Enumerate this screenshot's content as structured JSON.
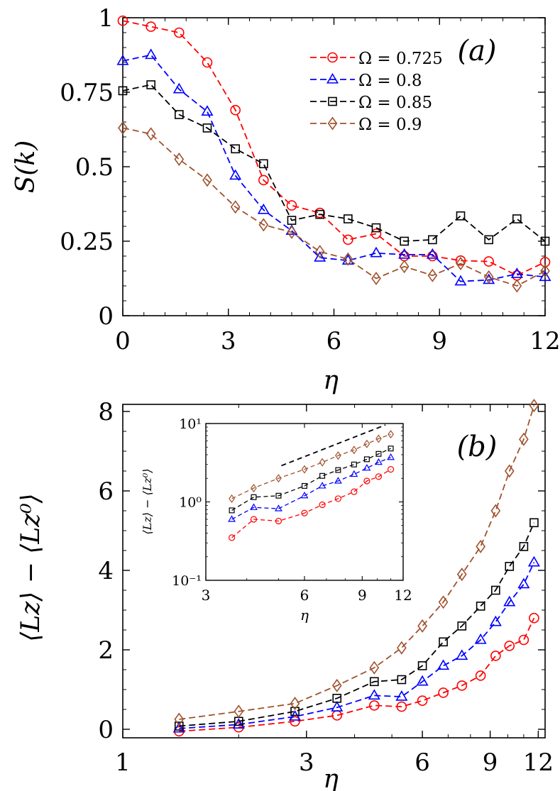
{
  "chart_data": [
    {
      "type": "line",
      "panel_label": "(a)",
      "xlabel": "η",
      "ylabel": "S(k)",
      "xlim": [
        0,
        12
      ],
      "ylim": [
        0,
        1
      ],
      "xticks": [
        "0",
        "3",
        "6",
        "9",
        "12"
      ],
      "yticks": [
        "0",
        "0.25",
        "0.5",
        "0.75",
        "1"
      ],
      "legend_position": "top-right",
      "series": [
        {
          "name": "Ω = 0.725",
          "color": "#ff0000",
          "marker": "circle",
          "x": [
            0,
            0.8,
            1.6,
            2.4,
            3.2,
            4.0,
            4.8,
            5.6,
            6.4,
            7.2,
            8.0,
            8.8,
            9.6,
            10.4,
            11.2,
            12.0
          ],
          "y": [
            0.99,
            0.97,
            0.95,
            0.85,
            0.69,
            0.455,
            0.37,
            0.345,
            0.255,
            0.275,
            0.2,
            0.2,
            0.185,
            0.182,
            0.135,
            0.18
          ]
        },
        {
          "name": "Ω = 0.8",
          "color": "#0000ff",
          "marker": "triangle",
          "x": [
            0,
            0.8,
            1.6,
            2.4,
            3.2,
            4.0,
            4.8,
            5.6,
            6.4,
            7.2,
            8.0,
            8.8,
            9.6,
            10.4,
            11.2,
            12.0
          ],
          "y": [
            0.855,
            0.875,
            0.76,
            0.685,
            0.47,
            0.355,
            0.285,
            0.195,
            0.185,
            0.21,
            0.205,
            0.205,
            0.115,
            0.12,
            0.14,
            0.13
          ]
        },
        {
          "name": "Ω = 0.85",
          "color": "#000000",
          "marker": "square",
          "x": [
            0,
            0.8,
            1.6,
            2.4,
            3.2,
            4.0,
            4.8,
            5.6,
            6.4,
            7.2,
            8.0,
            8.8,
            9.6,
            10.4,
            11.2,
            12.0
          ],
          "y": [
            0.755,
            0.775,
            0.675,
            0.63,
            0.56,
            0.51,
            0.32,
            0.34,
            0.325,
            0.295,
            0.25,
            0.255,
            0.335,
            0.255,
            0.325,
            0.25
          ]
        },
        {
          "name": "Ω = 0.9",
          "color": "#a0522d",
          "marker": "diamond",
          "x": [
            0,
            0.8,
            1.6,
            2.4,
            3.2,
            4.0,
            4.8,
            5.6,
            6.4,
            7.2,
            8.0,
            8.8,
            9.6,
            10.4,
            11.2,
            12.0
          ],
          "y": [
            0.63,
            0.61,
            0.525,
            0.455,
            0.365,
            0.305,
            0.28,
            0.215,
            0.19,
            0.125,
            0.165,
            0.135,
            0.175,
            0.13,
            0.1,
            0.15
          ]
        }
      ]
    },
    {
      "type": "line",
      "panel_label": "(b)",
      "xlabel": "η",
      "ylabel": "⟨Lz⟩ − ⟨Lz⁰⟩",
      "xscale": "log",
      "xlim": [
        1,
        12.5
      ],
      "ylim": [
        0,
        8
      ],
      "xticks": [
        "1",
        "3",
        "6",
        "9",
        "12"
      ],
      "yticks": [
        "0",
        "2",
        "4",
        "6",
        "8"
      ],
      "series": [
        {
          "name": "Ω = 0.725",
          "color": "#ff0000",
          "marker": "circle",
          "x": [
            1.4,
            2.0,
            2.8,
            3.6,
            4.5,
            5.3,
            6.0,
            6.8,
            7.6,
            8.5,
            9.3,
            10.1,
            11.0,
            11.7
          ],
          "y": [
            -0.05,
            0.05,
            0.2,
            0.35,
            0.6,
            0.57,
            0.72,
            0.92,
            1.1,
            1.35,
            1.85,
            2.1,
            2.25,
            2.8
          ]
        },
        {
          "name": "Ω = 0.8",
          "color": "#0000ff",
          "marker": "triangle",
          "x": [
            1.4,
            2.0,
            2.8,
            3.6,
            4.5,
            5.3,
            6.0,
            6.8,
            7.6,
            8.5,
            9.3,
            10.1,
            11.0,
            11.7
          ],
          "y": [
            0.02,
            0.12,
            0.32,
            0.55,
            0.85,
            0.82,
            1.2,
            1.6,
            1.85,
            2.25,
            2.7,
            3.2,
            3.65,
            4.2
          ]
        },
        {
          "name": "Ω = 0.85",
          "color": "#000000",
          "marker": "square",
          "x": [
            1.4,
            2.0,
            2.8,
            3.6,
            4.5,
            5.3,
            6.0,
            6.8,
            7.6,
            8.5,
            9.3,
            10.1,
            11.0,
            11.7
          ],
          "y": [
            0.08,
            0.2,
            0.45,
            0.78,
            1.2,
            1.25,
            1.6,
            2.2,
            2.6,
            3.1,
            3.5,
            4.1,
            4.6,
            5.2
          ]
        },
        {
          "name": "Ω = 0.9",
          "color": "#a0522d",
          "marker": "diamond",
          "x": [
            1.4,
            2.0,
            2.8,
            3.6,
            4.5,
            5.3,
            6.0,
            6.8,
            7.6,
            8.5,
            9.3,
            10.1,
            11.0,
            11.7
          ],
          "y": [
            0.25,
            0.45,
            0.65,
            1.1,
            1.55,
            2.05,
            2.6,
            3.2,
            3.9,
            4.6,
            5.5,
            6.5,
            7.3,
            8.15
          ]
        }
      ],
      "inset": {
        "xscale": "log",
        "yscale": "log",
        "xlabel": "η",
        "ylabel": "⟨Lz⟩ − ⟨Lz⁰⟩",
        "xlim": [
          3,
          12
        ],
        "ylim": [
          0.1,
          10
        ],
        "xticks": [
          "3",
          "6",
          "9",
          "12"
        ],
        "yticks": [
          "10⁻¹",
          "10⁰",
          "10¹"
        ],
        "guide_line": {
          "x": [
            5.1,
            10.6
          ],
          "y": [
            2.9,
            9.6
          ]
        },
        "series": [
          {
            "name": "Ω = 0.725",
            "color": "#ff0000",
            "marker": "circle",
            "x": [
              3.6,
              4.2,
              5.0,
              6.0,
              6.8,
              7.6,
              8.5,
              9.3,
              10.1,
              11.0
            ],
            "y": [
              0.35,
              0.6,
              0.57,
              0.72,
              0.92,
              1.1,
              1.35,
              1.85,
              2.1,
              2.6
            ]
          },
          {
            "name": "Ω = 0.8",
            "color": "#0000ff",
            "marker": "triangle",
            "x": [
              3.6,
              4.2,
              5.0,
              6.0,
              6.8,
              7.6,
              8.5,
              9.3,
              10.1,
              11.0
            ],
            "y": [
              0.6,
              0.85,
              0.82,
              1.2,
              1.6,
              1.85,
              2.25,
              2.7,
              3.2,
              3.7
            ]
          },
          {
            "name": "Ω = 0.85",
            "color": "#000000",
            "marker": "square",
            "x": [
              3.6,
              4.2,
              5.0,
              6.0,
              6.8,
              7.6,
              8.5,
              9.3,
              10.1,
              11.0
            ],
            "y": [
              0.78,
              1.15,
              1.2,
              1.6,
              2.15,
              2.55,
              3.0,
              3.5,
              4.1,
              4.8
            ]
          },
          {
            "name": "Ω = 0.9",
            "color": "#a0522d",
            "marker": "diamond",
            "x": [
              3.6,
              4.2,
              5.0,
              6.0,
              6.8,
              7.6,
              8.5,
              9.3,
              10.1,
              11.0
            ],
            "y": [
              1.1,
              1.5,
              2.0,
              2.6,
              3.2,
              3.9,
              4.6,
              5.5,
              6.4,
              7.3
            ]
          }
        ]
      }
    }
  ]
}
